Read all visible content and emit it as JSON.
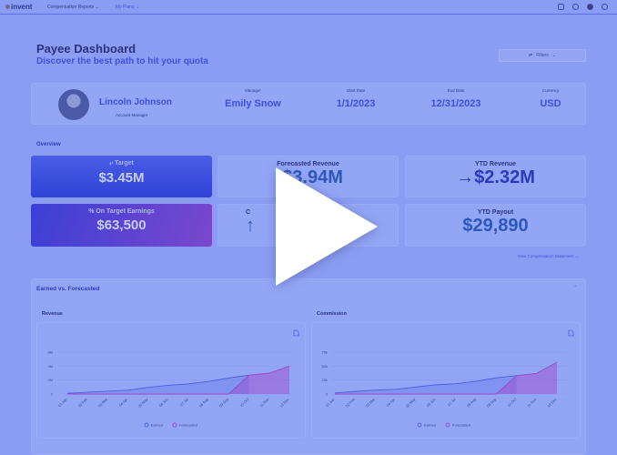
{
  "topbar": {
    "logo": "invent",
    "nav": [
      "Compensation Reports",
      "My Plans"
    ],
    "icons": [
      "mail-icon",
      "bell-icon",
      "avatar-icon",
      "help-icon"
    ]
  },
  "header": {
    "title": "Payee Dashboard",
    "subtitle": "Discover the best path to hit your quota",
    "filters_label": "Filters"
  },
  "profile": {
    "name": "Lincoln Johnson",
    "role": "Account Manager",
    "fields": [
      {
        "label": "Manager",
        "value": "Emily Snow"
      },
      {
        "label": "Start Date",
        "value": "1/1/2023"
      },
      {
        "label": "End Date",
        "value": "12/31/2023"
      },
      {
        "label": "Currency",
        "value": "USD"
      }
    ]
  },
  "overview": {
    "title": "Overview",
    "target": {
      "label": "Target",
      "value": "$3.45M"
    },
    "ote": {
      "label": "On Target Earnings",
      "value": "$63,500"
    },
    "forecasted_revenue": {
      "label": "Forecasted Revenue",
      "value": "$3.94M",
      "arrow": "↑"
    },
    "ytd_revenue": {
      "label": "YTD Revenue",
      "value": "$2.32M",
      "arrow": "→"
    },
    "hidden_card": {
      "label": "C",
      "arrow": "↑"
    },
    "ytd_payout": {
      "label": "YTD Payout",
      "value": "$29,890"
    },
    "link": "View Compensation Statement →"
  },
  "panel": {
    "title": "Earned vs. Forecasted"
  },
  "colors": {
    "earned": "#4a5ee8",
    "forecasted": "#a046c8"
  },
  "chart_data": [
    {
      "type": "area",
      "title": "Revenue",
      "categories": [
        "01 Jan",
        "02 Feb",
        "03 Mar",
        "04 Apr",
        "05 May",
        "06 Jun",
        "07 Jul",
        "08 Aug",
        "09 Sep",
        "10 Oct",
        "11 Nov",
        "12 Dec"
      ],
      "yticks": [
        "0",
        "2M",
        "4M",
        "6M"
      ],
      "ylim": [
        0,
        6
      ],
      "series": [
        {
          "name": "Earned",
          "values": [
            0.1,
            0.25,
            0.4,
            0.55,
            0.95,
            1.25,
            1.45,
            1.8,
            2.3,
            2.7,
            null,
            null
          ]
        },
        {
          "name": "Forecasted",
          "values": [
            0,
            0,
            0,
            0,
            0,
            0,
            0,
            0,
            0,
            2.7,
            3.0,
            4.0
          ]
        }
      ],
      "legend": [
        "Earned",
        "Forecasted"
      ]
    },
    {
      "type": "area",
      "title": "Commission",
      "categories": [
        "01 Jan",
        "02 Feb",
        "03 Mar",
        "04 Apr",
        "05 May",
        "06 Jun",
        "07 Jul",
        "08 Aug",
        "09 Sep",
        "10 Oct",
        "11 Nov",
        "12 Dec"
      ],
      "yticks": [
        "0",
        "25k",
        "50k",
        "75k"
      ],
      "ylim": [
        0,
        75
      ],
      "series": [
        {
          "name": "Earned",
          "values": [
            2,
            4.5,
            7,
            8.5,
            12.5,
            16.5,
            18.5,
            23,
            29,
            33,
            null,
            null
          ]
        },
        {
          "name": "Forecasted",
          "values": [
            0,
            0,
            0,
            0,
            0,
            0,
            0,
            0,
            0,
            33,
            37,
            57
          ]
        }
      ],
      "legend": [
        "Earned",
        "Forecasted"
      ]
    }
  ]
}
